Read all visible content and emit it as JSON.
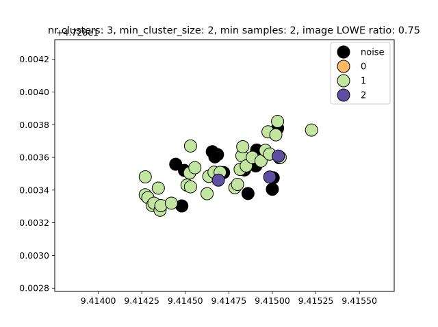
{
  "chart_data": {
    "type": "scatter",
    "title": "nr clusters: 3, min_cluster_size: 2, min samples: 2, image LOWE ratio: 0.75",
    "y_offset_label": "+4.728e1",
    "xlabel": "",
    "ylabel": "",
    "xlim": [
      9.41375,
      9.4157
    ],
    "ylim": [
      0.00278,
      0.00432
    ],
    "x_ticks": [
      9.414,
      9.41425,
      9.4145,
      9.41475,
      9.415,
      9.41525,
      9.4155
    ],
    "x_tick_labels": [
      "9.41400",
      "9.41425",
      "9.41450",
      "9.41475",
      "9.41500",
      "9.41525",
      "9.41550"
    ],
    "y_ticks": [
      0.0028,
      0.003,
      0.0032,
      0.0034,
      0.0036,
      0.0038,
      0.004,
      0.0042
    ],
    "y_tick_labels": [
      "0.0028",
      "0.0030",
      "0.0032",
      "0.0034",
      "0.0036",
      "0.0038",
      "0.0040",
      "0.0042"
    ],
    "grid": false,
    "legend_position": "top-right",
    "colors": {
      "noise": "#000000",
      "0": "#fdb863",
      "1": "#c2e5a0",
      "2": "#5e4fa2",
      "edge": "#000000"
    },
    "series": [
      {
        "name": "noise",
        "points": [
          [
            9.414445,
            0.003558
          ],
          [
            9.41448,
            0.003303
          ],
          [
            9.414495,
            0.00352
          ],
          [
            9.414655,
            0.003635
          ],
          [
            9.41467,
            0.003603
          ],
          [
            9.414685,
            0.003617
          ],
          [
            9.41472,
            0.003507
          ],
          [
            9.41484,
            0.003523
          ],
          [
            9.41486,
            0.003379
          ],
          [
            9.414905,
            0.003548
          ],
          [
            9.41491,
            0.003645
          ],
          [
            9.41495,
            0.00363
          ],
          [
            9.415,
            0.003405
          ],
          [
            9.415005,
            0.003475
          ],
          [
            9.41503,
            0.003778
          ]
        ]
      },
      {
        "name": "0",
        "points": []
      },
      {
        "name": "1",
        "points": [
          [
            9.41427,
            0.003481
          ],
          [
            9.41427,
            0.003371
          ],
          [
            9.414285,
            0.003354
          ],
          [
            9.41431,
            0.003306
          ],
          [
            9.41432,
            0.00332
          ],
          [
            9.414345,
            0.003412
          ],
          [
            9.414355,
            0.003277
          ],
          [
            9.41436,
            0.003305
          ],
          [
            9.41442,
            0.00332
          ],
          [
            9.41451,
            0.00343
          ],
          [
            9.414525,
            0.003505
          ],
          [
            9.41453,
            0.00367
          ],
          [
            9.41453,
            0.00342
          ],
          [
            9.414555,
            0.003537
          ],
          [
            9.414625,
            0.003378
          ],
          [
            9.414635,
            0.003484
          ],
          [
            9.414665,
            0.003509
          ],
          [
            9.4147,
            0.003508
          ],
          [
            9.414785,
            0.003415
          ],
          [
            9.4148,
            0.003435
          ],
          [
            9.414815,
            0.003527
          ],
          [
            9.414825,
            0.00361
          ],
          [
            9.41483,
            0.003665
          ],
          [
            9.41485,
            0.003548
          ],
          [
            9.414885,
            0.0036
          ],
          [
            9.414935,
            0.003578
          ],
          [
            9.41496,
            0.003643
          ],
          [
            9.414975,
            0.003756
          ],
          [
            9.414985,
            0.00362
          ],
          [
            9.41502,
            0.003738
          ],
          [
            9.41503,
            0.00382
          ],
          [
            9.41504,
            0.003598
          ],
          [
            9.415045,
            0.0036
          ],
          [
            9.415225,
            0.003767
          ]
        ]
      },
      {
        "name": "2",
        "points": [
          [
            9.41469,
            0.003461
          ],
          [
            9.414985,
            0.00348
          ],
          [
            9.415035,
            0.003608
          ]
        ]
      }
    ]
  }
}
